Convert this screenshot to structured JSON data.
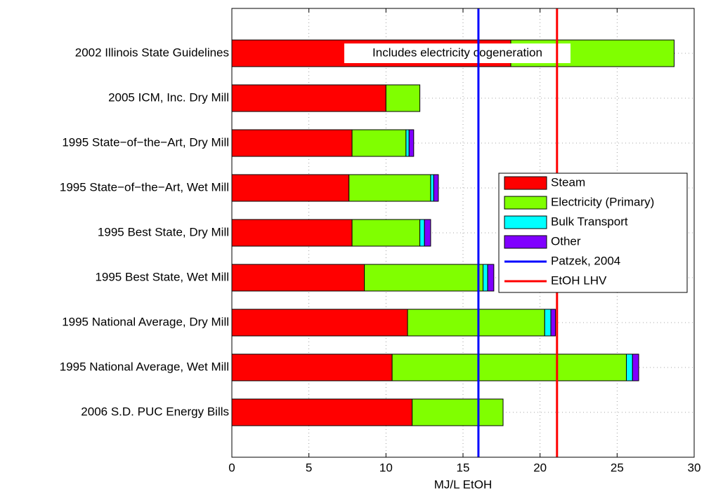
{
  "chart_data": {
    "type": "stacked-barh",
    "xlabel": "MJ/L EtOH",
    "categories": [
      "2002 Illinois State Guidelines",
      "2005 ICM, Inc. Dry Mill",
      "1995 State−of−the−Art, Dry Mill",
      "1995 State−of−the−Art, Wet Mill",
      "1995 Best State, Dry Mill",
      "1995 Best State, Wet Mill",
      "1995 National Average, Dry Mill",
      "1995 National Average, Wet Mill",
      "2006 S.D. PUC Energy Bills"
    ],
    "series": [
      {
        "name": "Steam",
        "color": "#ff0000",
        "values": [
          18.1,
          10.0,
          7.8,
          7.6,
          7.8,
          8.6,
          11.4,
          10.4,
          11.7
        ]
      },
      {
        "name": "Electricity (Primary)",
        "color": "#80ff00",
        "values": [
          10.6,
          2.2,
          3.5,
          5.3,
          4.4,
          7.7,
          8.9,
          15.2,
          5.9
        ]
      },
      {
        "name": "Bulk Transport",
        "color": "#00ffff",
        "values": [
          null,
          null,
          0.2,
          0.2,
          0.3,
          0.3,
          0.4,
          0.4,
          null
        ]
      },
      {
        "name": "Other",
        "color": "#8000ff",
        "values": [
          null,
          null,
          0.3,
          0.3,
          0.4,
          0.4,
          0.3,
          0.4,
          null
        ]
      }
    ],
    "reference_lines": [
      {
        "name": "Patzek, 2004",
        "color": "#0000ff",
        "value": 16.0
      },
      {
        "name": "EtOH LHV",
        "color": "#ff0000",
        "value": 21.1
      }
    ],
    "annotation": "Includes electricity cogeneration",
    "xlim": [
      0,
      30
    ],
    "xticks": [
      0,
      5,
      10,
      15,
      20,
      25,
      30
    ],
    "grid": true,
    "legend": "right"
  }
}
